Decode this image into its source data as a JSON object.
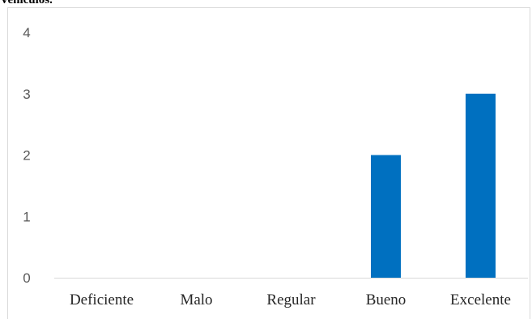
{
  "chart_data": {
    "type": "bar",
    "title": "Vehículos.",
    "categories": [
      "Deficiente",
      "Malo",
      "Regular",
      "Bueno",
      "Excelente"
    ],
    "values": [
      0,
      0,
      0,
      2,
      3
    ],
    "yticks": [
      "0",
      "1",
      "2",
      "3",
      "4"
    ],
    "ylim": [
      0,
      4
    ],
    "xlabel": "",
    "ylabel": "",
    "grid": false,
    "legend": "none",
    "bar_color": "#0070c0",
    "axis_color": "#d9d9d9",
    "label_color": "#595959",
    "text_color": "#262626"
  }
}
